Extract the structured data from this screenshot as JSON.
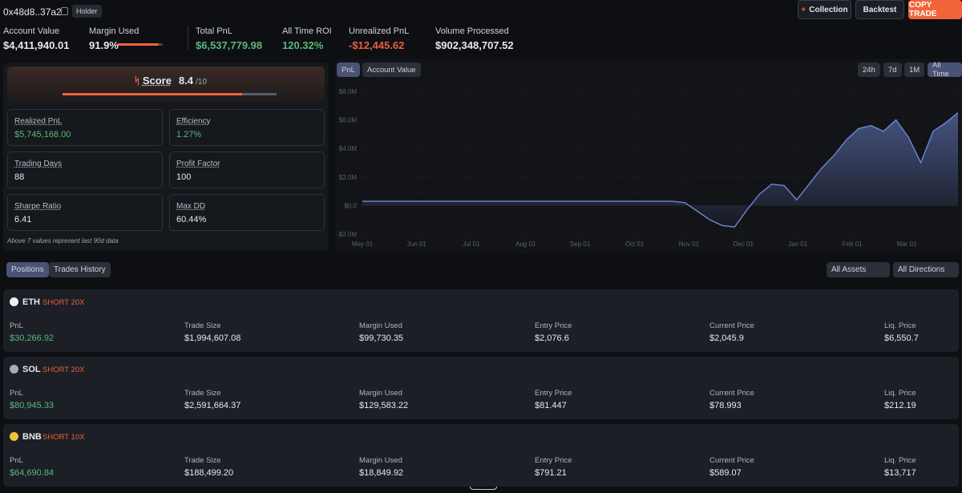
{
  "header": {
    "address": "0x48d8..37a2",
    "badge": "Holder",
    "buttons": [
      "Collection",
      "Backtest",
      "COPY TRADE"
    ]
  },
  "stats": [
    {
      "label": "Account Value",
      "value": "$4,411,940.01"
    },
    {
      "label": "Margin Used",
      "value": "91.9%"
    },
    {
      "label": "Total PnL",
      "value": "$6,537,779.98"
    },
    {
      "label": "All Time ROI",
      "value": "120.32%"
    },
    {
      "label": "Unrealized PnL",
      "value": "-$12,445.62"
    },
    {
      "label": "Volume Processed",
      "value": "$902,348,707.52"
    }
  ],
  "score": {
    "label": "Score",
    "value": 8.4,
    "max": "/10"
  },
  "metrics": [
    {
      "label": "Realized PnL",
      "value": "$5,745,168.00"
    },
    {
      "label": "Efficiency",
      "value": "1.27%"
    },
    {
      "label": "Trading Days",
      "value": "88"
    },
    {
      "label": "Profit Factor",
      "value": "100"
    },
    {
      "label": "Sharpe Ratio",
      "value": "6.41"
    },
    {
      "label": "Max DD",
      "value": "60.44%"
    }
  ],
  "metrics_note": "Above 7 values represent last 90d data",
  "chart": {
    "type": "area",
    "tabs": [
      "PnL",
      "Account Value"
    ],
    "ranges": [
      "24h",
      "7d",
      "1M",
      "All Time"
    ],
    "xticks": [
      "May 01",
      "Jun 01",
      "Jul 01",
      "Aug 01",
      "Sep 01",
      "Oct 01",
      "Nov 01",
      "Dec 01",
      "Jan 01",
      "Feb 01",
      "Mar 01"
    ],
    "ylim": [
      -2000000,
      8000000
    ],
    "yticks": [
      {
        "value": 8000000,
        "label": "$8.0M"
      },
      {
        "value": 6000000,
        "label": "$6.0M"
      },
      {
        "value": 4000000,
        "label": "$4.0M"
      },
      {
        "value": 2000000,
        "label": "$2.0M"
      },
      {
        "value": 0,
        "label": "$0.0"
      },
      {
        "value": -2000000,
        "label": "-$2.0M"
      }
    ],
    "color": "#6f86d6",
    "values": [
      300000,
      300000,
      300000,
      300000,
      300000,
      300000,
      300000,
      300000,
      300000,
      300000,
      300000,
      300000,
      300000,
      300000,
      300000,
      300000,
      300000,
      300000,
      300000,
      300000,
      300000,
      300000,
      300000,
      300000,
      300000,
      300000,
      200000,
      -400000,
      -1000000,
      -1400000,
      -1500000,
      -300000,
      800000,
      1500000,
      1400000,
      400000,
      1500000,
      2600000,
      3500000,
      4600000,
      5400000,
      5600000,
      5200000,
      6000000,
      4800000,
      3000000,
      5200000,
      5800000,
      6500000
    ]
  },
  "tabs": [
    "Positions",
    "Trades History"
  ],
  "filters": [
    "All Assets",
    "All Directions"
  ],
  "position_labels": [
    "PnL",
    "Trade Size",
    "Margin Used",
    "Entry Price",
    "Current Price",
    "Liq. Price"
  ],
  "positions": [
    {
      "asset": "ETH",
      "side": "SHORT 20X",
      "values": [
        "$30,266.92",
        "$1,994,607.08",
        "$99,730.35",
        "$2,076.6",
        "$2,045.9",
        "$6,550.7"
      ]
    },
    {
      "asset": "SOL",
      "side": "SHORT 20X",
      "values": [
        "$80,945.33",
        "$2,591,664.37",
        "$129,583.22",
        "$81.447",
        "$78.993",
        "$212.19"
      ]
    },
    {
      "asset": "BNB",
      "side": "SHORT 10X",
      "values": [
        "$64,690.84",
        "$188,499.20",
        "$18,849.92",
        "$791.21",
        "$589.07",
        "$13,717"
      ]
    }
  ]
}
